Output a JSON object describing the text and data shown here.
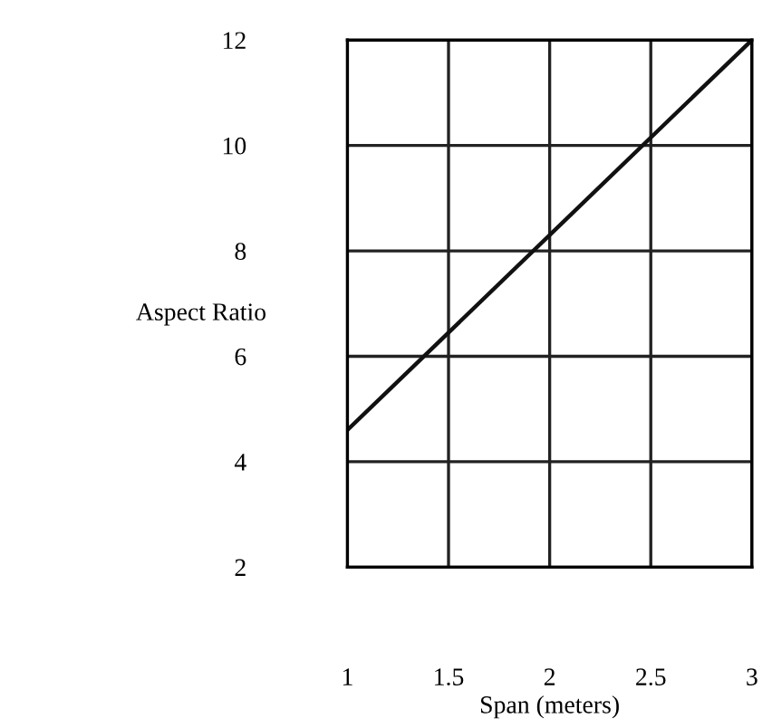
{
  "chart_data": {
    "type": "line",
    "xlabel": "Span (meters)",
    "ylabel": "Aspect Ratio",
    "x": [
      1,
      3
    ],
    "series": [
      {
        "color": "#111111",
        "values": [
          4.6,
          12
        ]
      }
    ],
    "xlim": [
      1,
      3
    ],
    "ylim": [
      2,
      12
    ],
    "xticks": [
      1,
      1.5,
      2,
      2.5,
      3
    ],
    "yticks": [
      2,
      4,
      6,
      8,
      10,
      12
    ],
    "grid": true,
    "legend": false,
    "marker": "none",
    "line_style": "solid"
  }
}
